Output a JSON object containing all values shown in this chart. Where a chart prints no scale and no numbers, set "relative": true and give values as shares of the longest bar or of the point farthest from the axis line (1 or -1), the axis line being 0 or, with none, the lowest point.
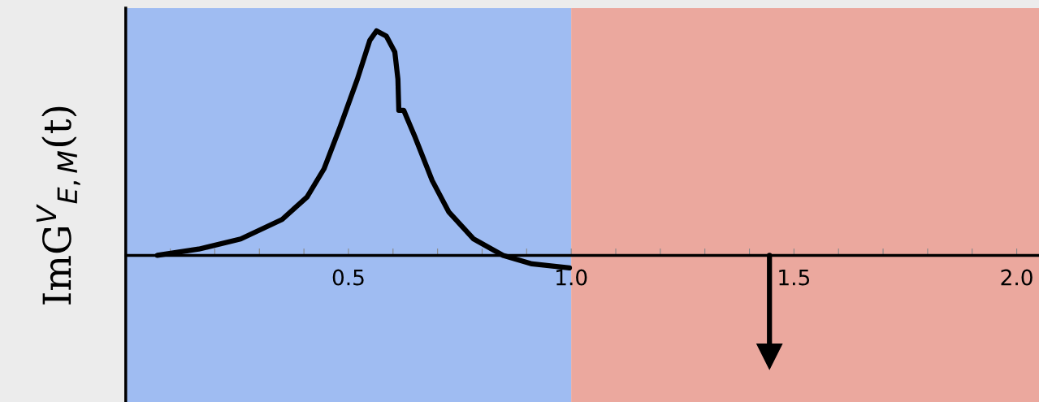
{
  "chart_data": {
    "type": "line",
    "relative": true,
    "ylabel": "ImG$^{V}$$_{E,M}$(t)",
    "xlim": [
      0,
      2.05
    ],
    "xticks": [
      {
        "value": 0.1,
        "label": null
      },
      {
        "value": 0.2,
        "label": null
      },
      {
        "value": 0.3,
        "label": null
      },
      {
        "value": 0.4,
        "label": null
      },
      0.5,
      {
        "value": 0.6,
        "label": null
      },
      {
        "value": 0.7,
        "label": null
      },
      {
        "value": 0.8,
        "label": null
      },
      {
        "value": 0.9,
        "label": null
      },
      {
        "value": 1.0,
        "label": "1.0"
      },
      {
        "value": 1.1,
        "label": null
      },
      {
        "value": 1.2,
        "label": null
      },
      {
        "value": 1.3,
        "label": null
      },
      {
        "value": 1.4,
        "label": null
      },
      1.5,
      {
        "value": 1.6,
        "label": null
      },
      {
        "value": 1.7,
        "label": null
      },
      {
        "value": 1.8,
        "label": null
      },
      {
        "value": 1.9,
        "label": null
      },
      {
        "value": 2.0,
        "label": "2.0"
      }
    ],
    "grid": false,
    "legend": false,
    "line_style": "solid",
    "bands": [
      {
        "axis": "x",
        "from": 0,
        "to": 1.0,
        "color": "#9fbcf2"
      },
      {
        "axis": "x",
        "from": 1.0,
        "to": 2.05,
        "color": "#eba89e"
      }
    ],
    "series": [
      {
        "color": "#000000",
        "marker": "none",
        "x": [
          0.071,
          0.164,
          0.258,
          0.351,
          0.407,
          0.445,
          0.482,
          0.52,
          0.548,
          0.563,
          0.585,
          0.604,
          0.611,
          0.613,
          0.624,
          0.65,
          0.688,
          0.725,
          0.781,
          0.847,
          0.912,
          0.996
        ],
        "values": [
          0,
          0.028,
          0.073,
          0.16,
          0.26,
          0.385,
          0.576,
          0.785,
          0.958,
          1.0,
          0.976,
          0.906,
          0.785,
          0.646,
          0.646,
          0.524,
          0.333,
          0.194,
          0.073,
          0,
          -0.038,
          -0.056
        ]
      },
      {
        "color": "#000000",
        "marker": "triangle",
        "x": [
          1.445,
          1.445
        ],
        "values": [
          0,
          -0.45
        ]
      }
    ]
  }
}
